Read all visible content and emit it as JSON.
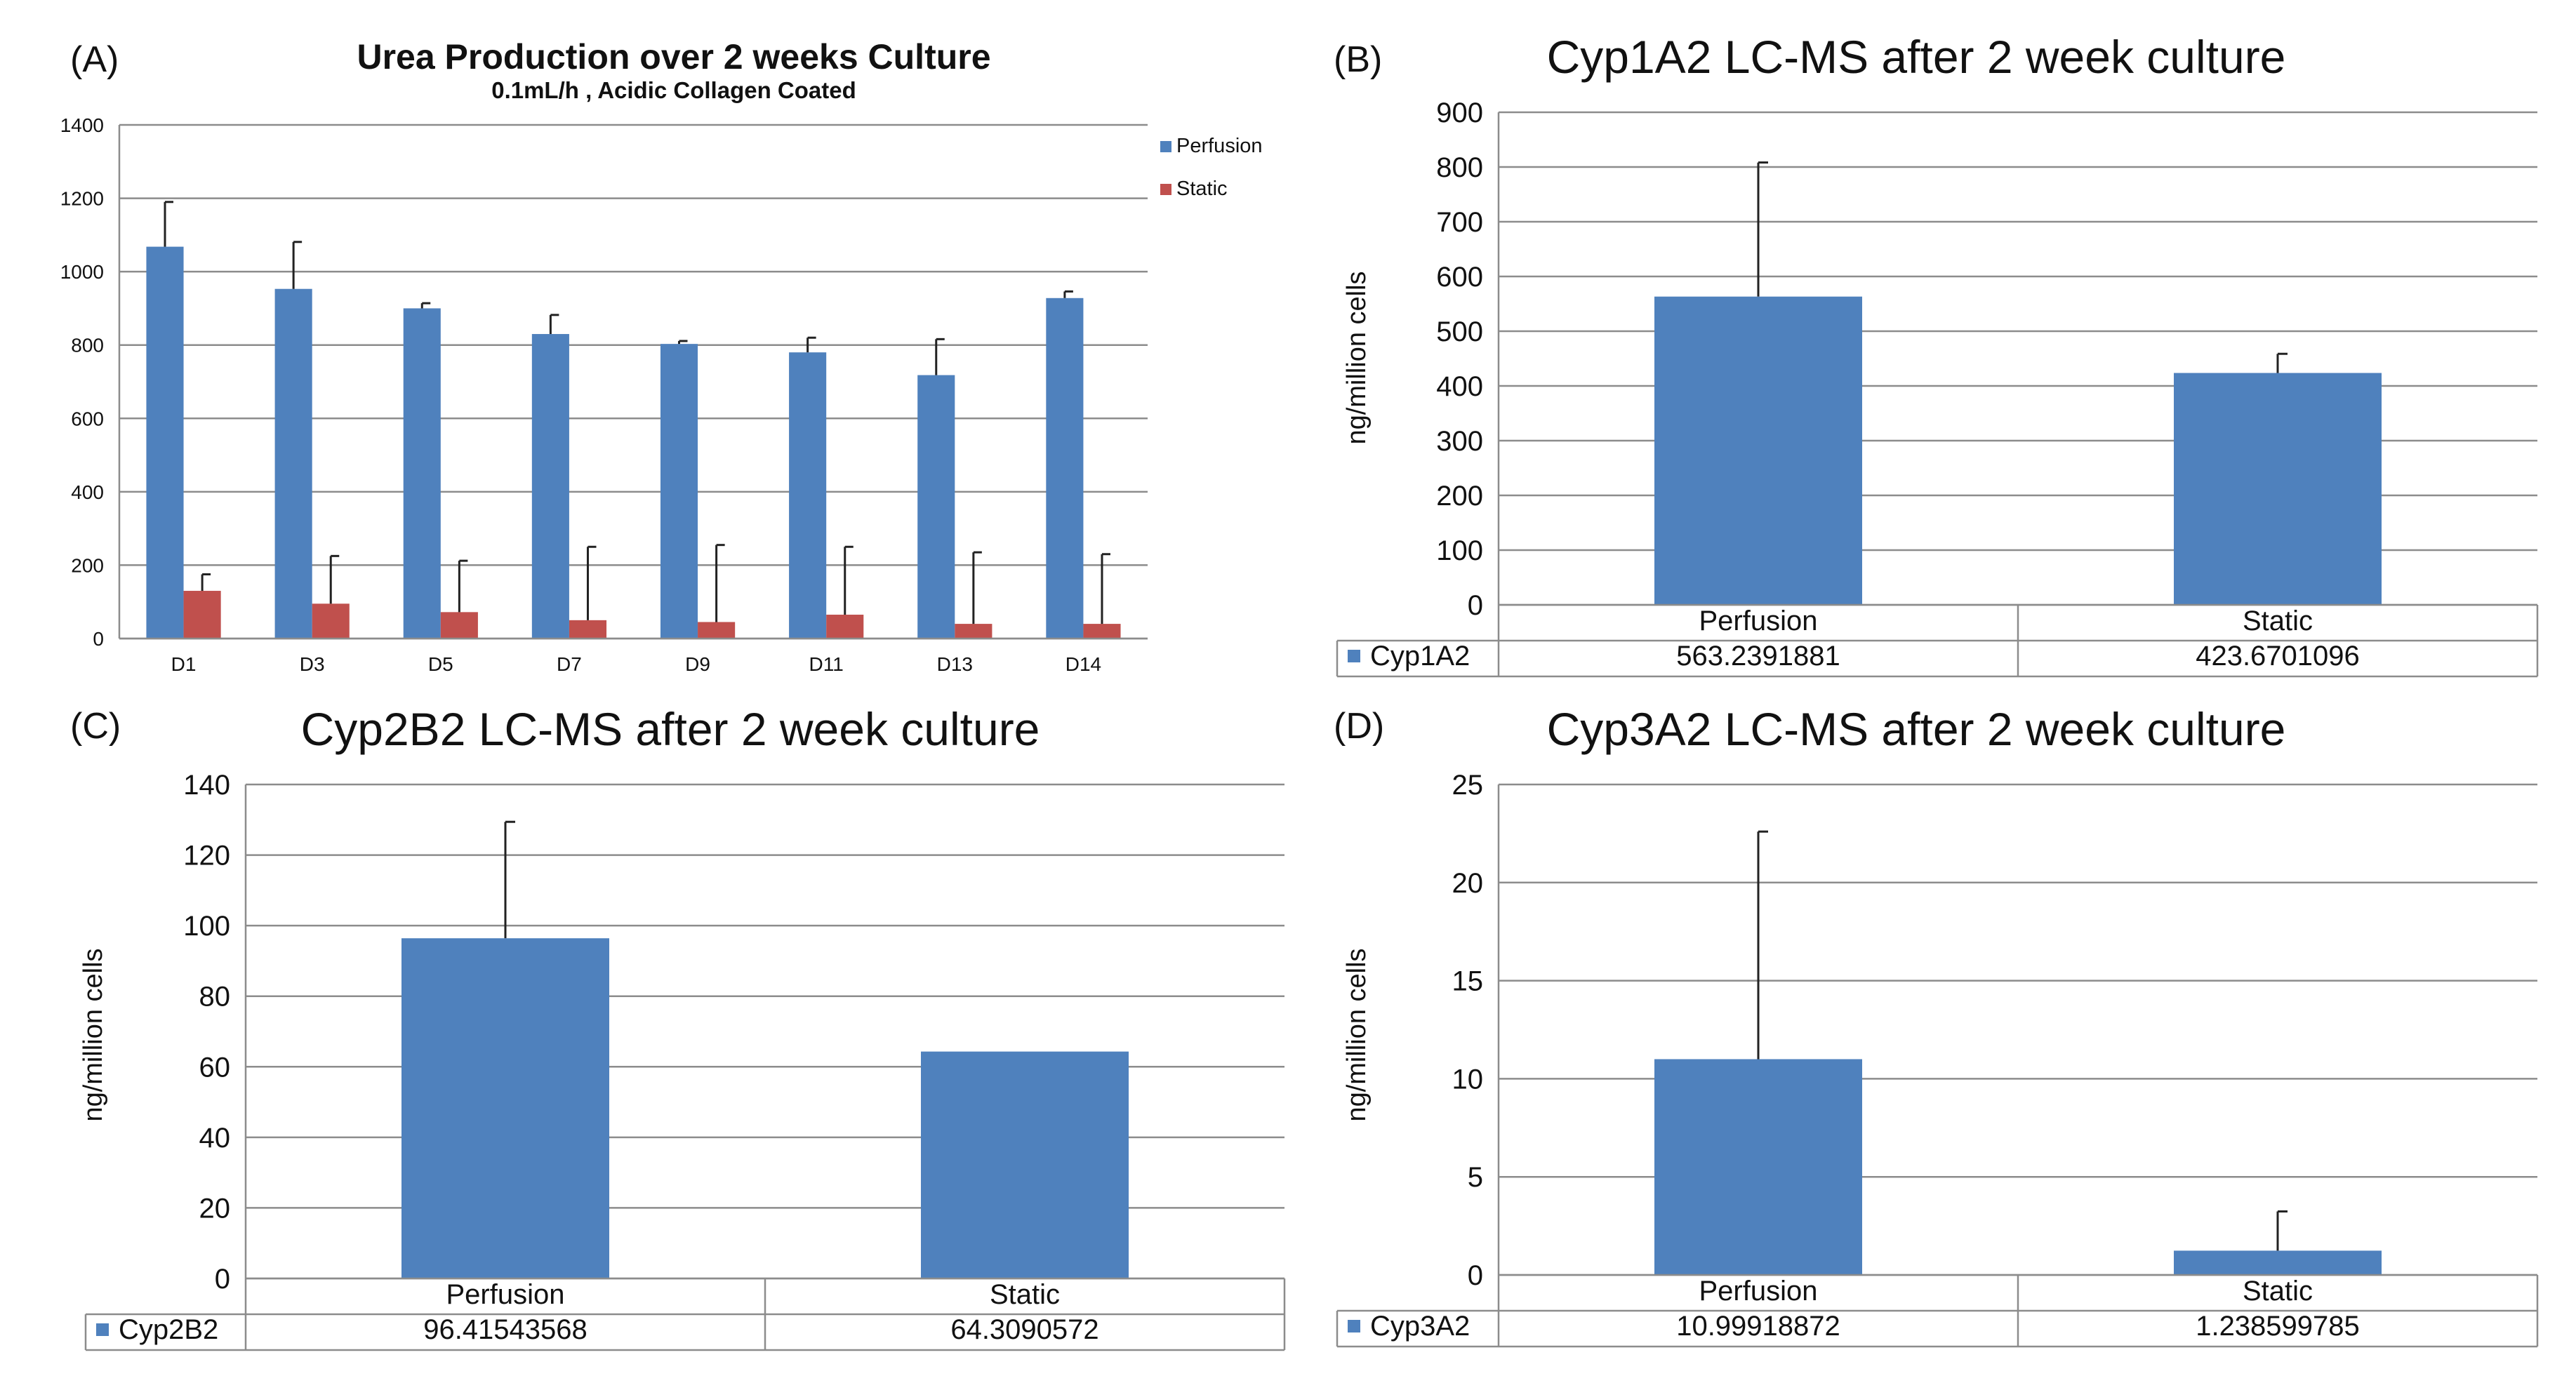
{
  "figure": {
    "background": "#ffffff",
    "perfusion_color": "#4f81bd",
    "static_color": "#c0504d"
  },
  "chart_data": [
    {
      "id": "A",
      "type": "bar",
      "panel_label": "(A)",
      "title": "Urea Production over 2 weeks Culture",
      "subtitle": "0.1mL/h , Acidic Collagen Coated",
      "categories": [
        "D1",
        "D3",
        "D5",
        "D7",
        "D9",
        "D11",
        "D13",
        "D14"
      ],
      "series": [
        {
          "name": "Perfusion",
          "color": "#4f81bd",
          "values": [
            1068,
            953,
            900,
            830,
            803,
            780,
            718,
            928
          ],
          "errors": [
            122,
            128,
            14,
            52,
            8,
            40,
            98,
            18
          ]
        },
        {
          "name": "Static",
          "color": "#c0504d",
          "values": [
            130,
            95,
            72,
            50,
            45,
            65,
            40,
            40
          ],
          "errors": [
            45,
            130,
            140,
            200,
            210,
            185,
            195,
            190
          ]
        }
      ],
      "ylim": [
        0,
        1400
      ],
      "yticks": [
        0,
        200,
        400,
        600,
        800,
        1000,
        1200,
        1400
      ],
      "grid": true,
      "legend": "top-right"
    },
    {
      "id": "B",
      "type": "bar",
      "panel_label": "(B)",
      "title": "Cyp1A2 LC-MS after 2 week culture",
      "ylabel": "ng/million cells",
      "categories": [
        "Perfusion",
        "Static"
      ],
      "series": [
        {
          "name": "Cyp1A2",
          "color": "#4f81bd",
          "values": [
            563.2391881,
            423.6701096
          ],
          "value_labels": [
            "563.2391881",
            "423.6701096"
          ],
          "errors": [
            245,
            35
          ]
        }
      ],
      "ylim": [
        0,
        900
      ],
      "yticks": [
        0,
        100,
        200,
        300,
        400,
        500,
        600,
        700,
        800,
        900
      ],
      "grid": true,
      "legend": "data-table"
    },
    {
      "id": "C",
      "type": "bar",
      "panel_label": "(C)",
      "title": "Cyp2B2 LC-MS after 2 week culture",
      "ylabel": "ng/million cells",
      "categories": [
        "Perfusion",
        "Static"
      ],
      "series": [
        {
          "name": "Cyp2B2",
          "color": "#4f81bd",
          "values": [
            96.41543568,
            64.3090572
          ],
          "value_labels": [
            "96.41543568",
            "64.3090572"
          ],
          "errors": [
            33,
            0
          ]
        }
      ],
      "ylim": [
        0,
        140
      ],
      "yticks": [
        0,
        20,
        40,
        60,
        80,
        100,
        120,
        140
      ],
      "grid": true,
      "legend": "data-table"
    },
    {
      "id": "D",
      "type": "bar",
      "panel_label": "(D)",
      "title": "Cyp3A2 LC-MS after 2 week culture",
      "ylabel": "ng/million cells",
      "categories": [
        "Perfusion",
        "Static"
      ],
      "series": [
        {
          "name": "Cyp3A2",
          "color": "#4f81bd",
          "values": [
            10.99918872,
            1.238599785
          ],
          "value_labels": [
            "10.99918872",
            "1.238599785"
          ],
          "errors": [
            11.6,
            2.0
          ]
        }
      ],
      "ylim": [
        0,
        25
      ],
      "yticks": [
        0,
        5,
        10,
        15,
        20,
        25
      ],
      "grid": true,
      "legend": "data-table"
    }
  ]
}
